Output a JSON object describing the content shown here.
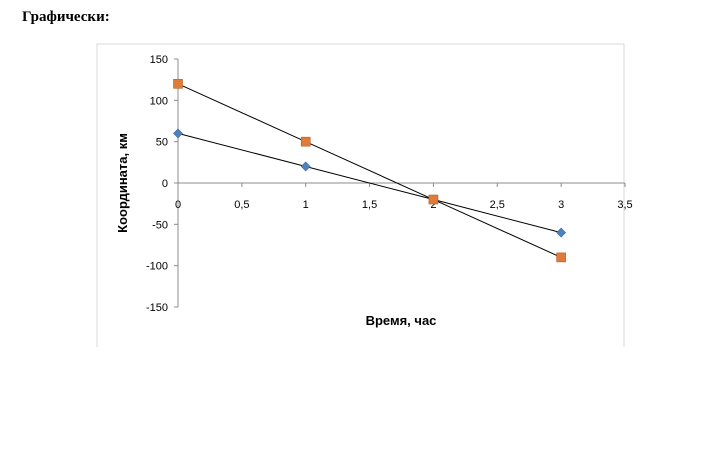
{
  "heading": "Графически:",
  "chart_data": {
    "type": "line",
    "title": "",
    "xlabel": "Время, час",
    "ylabel": "Координата, км",
    "xlim": [
      0,
      3.5
    ],
    "ylim": [
      -150,
      150
    ],
    "x_ticks": [
      0,
      0.5,
      1,
      1.5,
      2,
      2.5,
      3,
      3.5
    ],
    "x_tick_labels": [
      "0",
      "0,5",
      "1",
      "1,5",
      "2",
      "2,5",
      "3",
      "3,5"
    ],
    "y_ticks": [
      150,
      100,
      50,
      0,
      -50,
      -100,
      -150
    ],
    "y_tick_labels": [
      "150",
      "100",
      "50",
      "0",
      "-50",
      "-100",
      "-150"
    ],
    "grid": false,
    "legend": "none",
    "series": [
      {
        "color": "#4f81bd",
        "marker": "diamond",
        "x": [
          0,
          1,
          2,
          3
        ],
        "y": [
          60,
          20,
          -20,
          -60
        ]
      },
      {
        "color": "#e07b39",
        "marker": "square",
        "x": [
          0,
          1,
          2,
          3
        ],
        "y": [
          120,
          50,
          -20,
          -90
        ]
      }
    ]
  }
}
